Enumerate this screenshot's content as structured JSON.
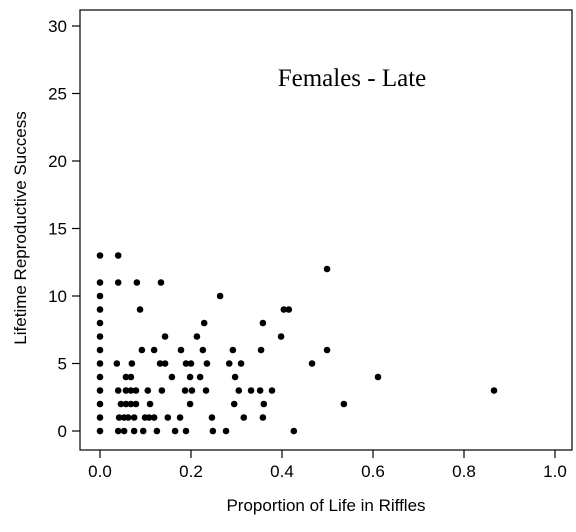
{
  "chart_data": {
    "type": "scatter",
    "title": "Females - Late",
    "x_label": "Proportion of Life in Riffles",
    "y_label": "Lifetime Reproductive Success",
    "color": "#000000",
    "xlim": [
      0,
      1
    ],
    "ylim": [
      0,
      30
    ],
    "xticks": [
      {
        "value": 0,
        "label": "0.0"
      },
      {
        "value": 0.2,
        "label": "0.2"
      },
      {
        "value": 0.4,
        "label": "0.4"
      },
      {
        "value": 0.6,
        "label": "0.6"
      },
      {
        "value": 0.8,
        "label": "0.8"
      },
      {
        "value": 1,
        "label": "1.0"
      }
    ],
    "yticks": [
      0,
      5,
      10,
      15,
      20,
      25,
      30
    ],
    "x": [
      0,
      0,
      0,
      0,
      0,
      0,
      0,
      0,
      0,
      0,
      0,
      0,
      0,
      0.04,
      0.04,
      0.081,
      0.134,
      0.264,
      0.088,
      0.404,
      0.415,
      0.499,
      0.229,
      0.358,
      0.143,
      0.213,
      0.398,
      0.092,
      0.119,
      0.178,
      0.226,
      0.292,
      0.354,
      0.499,
      0.037,
      0.07,
      0.132,
      0.143,
      0.189,
      0.2,
      0.235,
      0.284,
      0.31,
      0.466,
      0.057,
      0.068,
      0.158,
      0.198,
      0.22,
      0.297,
      0.611,
      0.04,
      0.057,
      0.068,
      0.079,
      0.105,
      0.136,
      0.187,
      0.202,
      0.233,
      0.305,
      0.332,
      0.352,
      0.378,
      0.866,
      0.046,
      0.057,
      0.068,
      0.079,
      0.11,
      0.198,
      0.295,
      0.36,
      0.536,
      0.042,
      0.053,
      0.062,
      0.075,
      0.099,
      0.108,
      0.119,
      0.149,
      0.176,
      0.246,
      0.316,
      0.358,
      0.04,
      0.053,
      0.075,
      0.095,
      0.125,
      0.165,
      0.189,
      0.248,
      0.277,
      0.426
    ],
    "values": [
      0,
      1,
      2,
      3,
      4,
      5,
      6,
      7,
      8,
      9,
      10,
      11,
      13,
      13,
      11,
      11,
      11,
      10,
      9,
      9,
      9,
      12,
      8,
      8,
      7,
      7,
      7,
      6,
      6,
      6,
      6,
      6,
      6,
      6,
      5,
      5,
      5,
      5,
      5,
      5,
      5,
      5,
      5,
      5,
      4,
      4,
      4,
      4,
      4,
      4,
      4,
      3,
      3,
      3,
      3,
      3,
      3,
      3,
      3,
      3,
      3,
      3,
      3,
      3,
      3,
      2,
      2,
      2,
      2,
      2,
      2,
      2,
      2,
      2,
      1,
      1,
      1,
      1,
      1,
      1,
      1,
      1,
      1,
      1,
      1,
      1,
      0,
      0,
      0,
      0,
      0,
      0,
      0,
      0,
      0,
      0
    ]
  }
}
